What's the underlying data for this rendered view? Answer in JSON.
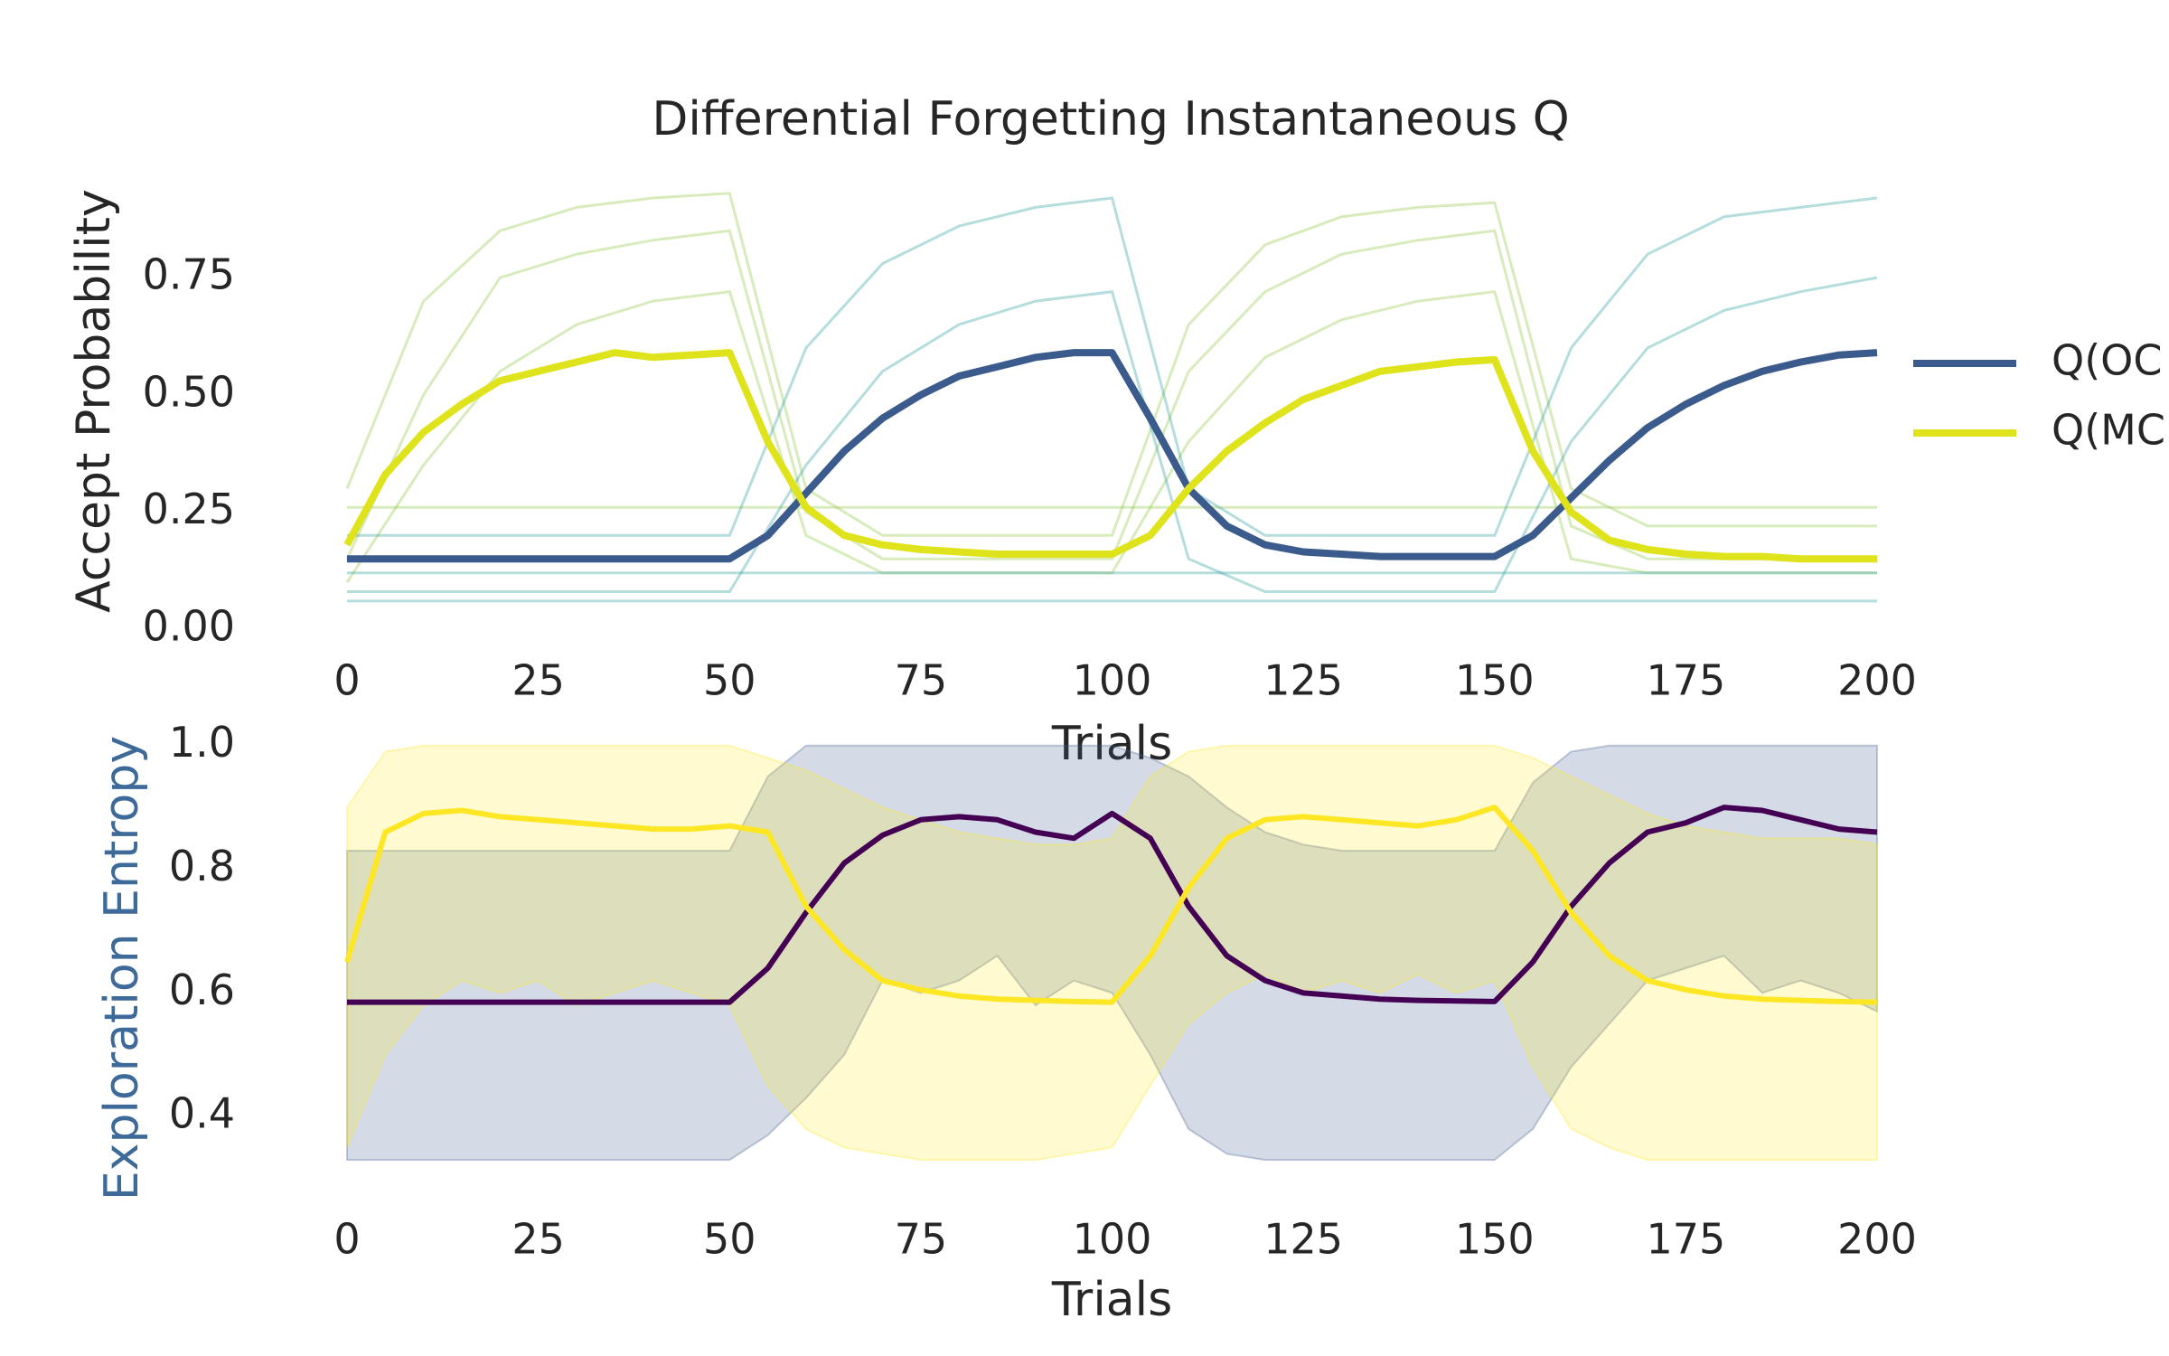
{
  "chart_data": [
    {
      "type": "line",
      "title": "Differential Forgetting Instantaneous Q",
      "xlabel": "Trials",
      "ylabel": "Accept Probability",
      "legend": "right",
      "grid": false,
      "xlim": [
        0,
        200
      ],
      "ylim": [
        0,
        0.974
      ],
      "xticks": [
        0,
        25,
        50,
        75,
        100,
        125,
        150,
        175,
        200
      ],
      "yticks": [
        {
          "value": 0,
          "label": "0.00"
        },
        {
          "value": 0.25,
          "label": "0.25"
        },
        {
          "value": 0.5,
          "label": "0.50"
        },
        {
          "value": 0.75,
          "label": "0.75"
        }
      ],
      "x": [
        0,
        5,
        10,
        15,
        20,
        25,
        30,
        35,
        40,
        45,
        50,
        55,
        60,
        65,
        70,
        75,
        80,
        85,
        90,
        95,
        100,
        105,
        110,
        115,
        120,
        125,
        130,
        135,
        140,
        145,
        150,
        155,
        160,
        165,
        170,
        175,
        180,
        185,
        190,
        195,
        200
      ],
      "series": [
        {
          "name": "Q(OC",
          "color": "#3b5b8c",
          "values": [
            0.15,
            0.15,
            0.15,
            0.15,
            0.15,
            0.15,
            0.15,
            0.15,
            0.15,
            0.15,
            0.15,
            0.2,
            0.29,
            0.38,
            0.45,
            0.5,
            0.54,
            0.56,
            0.58,
            0.59,
            0.59,
            0.45,
            0.3,
            0.22,
            0.18,
            0.165,
            0.16,
            0.155,
            0.155,
            0.155,
            0.155,
            0.2,
            0.28,
            0.36,
            0.43,
            0.48,
            0.52,
            0.55,
            0.57,
            0.585,
            0.59
          ]
        },
        {
          "name": "Q(MC",
          "color": "#dfe31c",
          "values": [
            0.18,
            0.33,
            0.42,
            0.48,
            0.53,
            0.55,
            0.57,
            0.59,
            0.58,
            0.585,
            0.59,
            0.4,
            0.26,
            0.2,
            0.18,
            0.17,
            0.165,
            0.16,
            0.16,
            0.16,
            0.16,
            0.2,
            0.3,
            0.38,
            0.44,
            0.49,
            0.52,
            0.55,
            0.56,
            0.57,
            0.575,
            0.38,
            0.25,
            0.19,
            0.17,
            0.16,
            0.155,
            0.155,
            0.15,
            0.15,
            0.15
          ]
        }
      ],
      "traces": {
        "x": [
          0,
          10,
          20,
          30,
          40,
          50,
          60,
          70,
          80,
          90,
          100,
          110,
          120,
          130,
          140,
          150,
          160,
          170,
          180,
          190,
          200
        ],
        "lines": [
          {
            "color": "#8cc63f",
            "values": [
              0.3,
              0.7,
              0.85,
              0.9,
              0.92,
              0.93,
              0.3,
              0.2,
              0.2,
              0.2,
              0.2,
              0.65,
              0.82,
              0.88,
              0.9,
              0.91,
              0.3,
              0.22,
              0.22,
              0.22,
              0.22
            ]
          },
          {
            "color": "#8cc63f",
            "values": [
              0.1,
              0.35,
              0.55,
              0.65,
              0.7,
              0.72,
              0.2,
              0.12,
              0.12,
              0.12,
              0.12,
              0.4,
              0.58,
              0.66,
              0.7,
              0.72,
              0.15,
              0.12,
              0.12,
              0.12,
              0.12
            ]
          },
          {
            "color": "#8cc63f",
            "values": [
              0.15,
              0.5,
              0.75,
              0.8,
              0.83,
              0.85,
              0.25,
              0.15,
              0.15,
              0.15,
              0.15,
              0.55,
              0.72,
              0.8,
              0.83,
              0.85,
              0.22,
              0.15,
              0.15,
              0.15,
              0.15
            ]
          },
          {
            "color": "#8cc63f",
            "values": [
              0.26,
              0.26,
              0.26,
              0.26,
              0.26,
              0.26,
              0.26,
              0.26,
              0.26,
              0.26,
              0.26,
              0.26,
              0.26,
              0.26,
              0.26,
              0.26,
              0.26,
              0.26,
              0.26,
              0.26,
              0.26
            ]
          },
          {
            "color": "#2a9d9e",
            "values": [
              0.2,
              0.2,
              0.2,
              0.2,
              0.2,
              0.2,
              0.6,
              0.78,
              0.86,
              0.9,
              0.92,
              0.3,
              0.2,
              0.2,
              0.2,
              0.2,
              0.6,
              0.8,
              0.88,
              0.9,
              0.92
            ]
          },
          {
            "color": "#2a9d9e",
            "values": [
              0.08,
              0.08,
              0.08,
              0.08,
              0.08,
              0.08,
              0.35,
              0.55,
              0.65,
              0.7,
              0.72,
              0.15,
              0.08,
              0.08,
              0.08,
              0.08,
              0.4,
              0.6,
              0.68,
              0.72,
              0.75
            ]
          },
          {
            "color": "#2a9d9e",
            "values": [
              0.12,
              0.12,
              0.12,
              0.12,
              0.12,
              0.12,
              0.12,
              0.12,
              0.12,
              0.12,
              0.12,
              0.12,
              0.12,
              0.12,
              0.12,
              0.12,
              0.12,
              0.12,
              0.12,
              0.12,
              0.12
            ]
          },
          {
            "color": "#2a9d9e",
            "values": [
              0.06,
              0.06,
              0.06,
              0.06,
              0.06,
              0.06,
              0.06,
              0.06,
              0.06,
              0.06,
              0.06,
              0.06,
              0.06,
              0.06,
              0.06,
              0.06,
              0.06,
              0.06,
              0.06,
              0.06,
              0.06
            ]
          }
        ]
      }
    },
    {
      "type": "band",
      "xlabel": "Trials",
      "ylabel": "Exploration Entropy",
      "ylabel_color": "#3d6a99",
      "grid": false,
      "xlim": [
        0,
        200
      ],
      "ylim": [
        0.26,
        1.02
      ],
      "xticks": [
        0,
        25,
        50,
        75,
        100,
        125,
        150,
        175,
        200
      ],
      "yticks": [
        0.4,
        0.6,
        0.8,
        {
          "value": 1,
          "label": "1.0"
        }
      ],
      "x": [
        0,
        5,
        10,
        15,
        20,
        25,
        30,
        35,
        40,
        45,
        50,
        55,
        60,
        65,
        70,
        75,
        80,
        85,
        90,
        95,
        100,
        105,
        110,
        115,
        120,
        125,
        130,
        135,
        140,
        145,
        150,
        155,
        160,
        165,
        170,
        175,
        180,
        185,
        190,
        195,
        200
      ],
      "series": [
        {
          "color": "#440154",
          "band_color": "#3b5b8c",
          "values": [
            0.585,
            0.585,
            0.585,
            0.585,
            0.585,
            0.585,
            0.585,
            0.585,
            0.585,
            0.585,
            0.585,
            0.64,
            0.73,
            0.81,
            0.855,
            0.88,
            0.885,
            0.88,
            0.86,
            0.85,
            0.89,
            0.85,
            0.74,
            0.66,
            0.62,
            0.6,
            0.595,
            0.59,
            0.588,
            0.587,
            0.586,
            0.65,
            0.74,
            0.81,
            0.86,
            0.875,
            0.9,
            0.895,
            0.88,
            0.865,
            0.86
          ],
          "lower": [
            0.33,
            0.33,
            0.33,
            0.33,
            0.33,
            0.33,
            0.33,
            0.33,
            0.33,
            0.33,
            0.33,
            0.37,
            0.43,
            0.5,
            0.62,
            0.6,
            0.62,
            0.66,
            0.58,
            0.62,
            0.6,
            0.5,
            0.38,
            0.34,
            0.33,
            0.33,
            0.33,
            0.33,
            0.33,
            0.33,
            0.33,
            0.38,
            0.48,
            0.55,
            0.62,
            0.64,
            0.66,
            0.6,
            0.62,
            0.6,
            0.57
          ],
          "upper": [
            0.83,
            0.83,
            0.83,
            0.83,
            0.83,
            0.83,
            0.83,
            0.83,
            0.83,
            0.83,
            0.83,
            0.95,
            1,
            1,
            1,
            1,
            1,
            1,
            1,
            1,
            1,
            0.98,
            0.95,
            0.9,
            0.86,
            0.84,
            0.83,
            0.83,
            0.83,
            0.83,
            0.83,
            0.94,
            0.99,
            1,
            1,
            1,
            1,
            1,
            1,
            1,
            1
          ]
        },
        {
          "color": "#fde725",
          "band_color": "#fde725",
          "values": [
            0.65,
            0.86,
            0.89,
            0.895,
            0.885,
            0.88,
            0.875,
            0.87,
            0.865,
            0.865,
            0.87,
            0.86,
            0.74,
            0.67,
            0.62,
            0.605,
            0.595,
            0.59,
            0.588,
            0.586,
            0.585,
            0.66,
            0.77,
            0.85,
            0.88,
            0.885,
            0.88,
            0.875,
            0.87,
            0.88,
            0.9,
            0.83,
            0.73,
            0.66,
            0.62,
            0.605,
            0.595,
            0.59,
            0.588,
            0.586,
            0.585
          ],
          "lower": [
            0.35,
            0.5,
            0.58,
            0.62,
            0.6,
            0.62,
            0.58,
            0.6,
            0.62,
            0.6,
            0.58,
            0.45,
            0.38,
            0.35,
            0.34,
            0.33,
            0.33,
            0.33,
            0.33,
            0.34,
            0.35,
            0.45,
            0.55,
            0.6,
            0.63,
            0.6,
            0.62,
            0.6,
            0.63,
            0.6,
            0.62,
            0.48,
            0.38,
            0.35,
            0.33,
            0.33,
            0.33,
            0.33,
            0.33,
            0.33,
            0.33
          ],
          "upper": [
            0.9,
            0.99,
            1,
            1,
            1,
            1,
            1,
            1,
            1,
            1,
            1,
            0.98,
            0.96,
            0.93,
            0.9,
            0.88,
            0.86,
            0.85,
            0.84,
            0.84,
            0.85,
            0.95,
            0.99,
            1,
            1,
            1,
            1,
            1,
            1,
            1,
            1,
            0.98,
            0.95,
            0.92,
            0.89,
            0.87,
            0.86,
            0.85,
            0.85,
            0.85,
            0.84
          ]
        }
      ]
    }
  ]
}
